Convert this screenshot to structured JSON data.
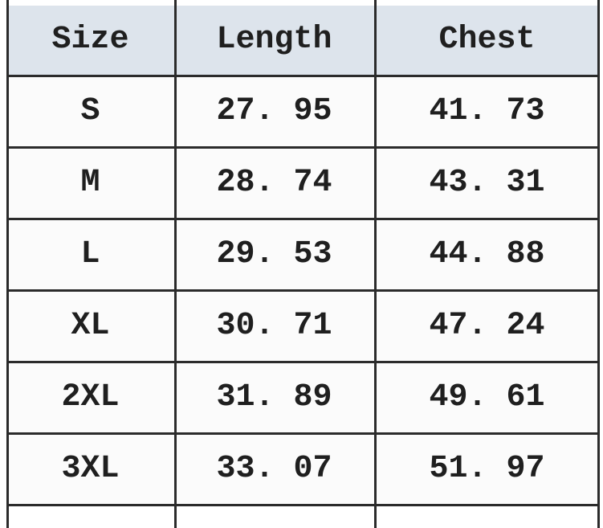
{
  "chart_data": {
    "type": "table",
    "columns": [
      "Size",
      "Length",
      "Chest"
    ],
    "rows": [
      [
        "S",
        27.95,
        41.73
      ],
      [
        "M",
        28.74,
        43.31
      ],
      [
        "L",
        29.53,
        44.88
      ],
      [
        "XL",
        30.71,
        47.24
      ],
      [
        "2XL",
        31.89,
        49.61
      ],
      [
        "3XL",
        33.07,
        51.97
      ]
    ],
    "layout_hints": {
      "header_background": "#dde4ec",
      "grid": "on",
      "text_align": "center"
    }
  },
  "table": {
    "headers": [
      "Size",
      "Length",
      "Chest"
    ],
    "rows": [
      [
        "S",
        "27. 95",
        "41. 73"
      ],
      [
        "M",
        "28. 74",
        "43. 31"
      ],
      [
        "L",
        "29. 53",
        "44. 88"
      ],
      [
        "XL",
        "30. 71",
        "47. 24"
      ],
      [
        "2XL",
        "31. 89",
        "49. 61"
      ],
      [
        "3XL",
        "33. 07",
        "51. 97"
      ]
    ]
  },
  "colors": {
    "border": "#2b2b2b",
    "header-bg": "#dde4ec",
    "body-bg": "#fbfbfb",
    "page-bg": "#ffffff",
    "text": "#1f1f1f"
  }
}
